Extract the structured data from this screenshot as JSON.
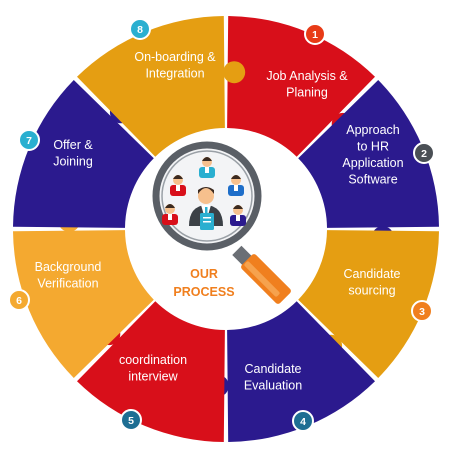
{
  "center": {
    "title_line1": "OUR",
    "title_line2": "PROCESS",
    "title_color": "#F07F1E"
  },
  "colors": {
    "red": "#D80F1A",
    "navy": "#2B1A8E",
    "gold": "#E59E12",
    "amber": "#F4A930"
  },
  "icons": [
    "magnifier-icon",
    "team-people-icon",
    "manager-icon"
  ],
  "steps": [
    {
      "number": "1",
      "line1": "Job Analysis &",
      "line2": "Planing",
      "line3": "",
      "line4": "",
      "segment_color": "#D80F1A",
      "badge_color": "#E83B17"
    },
    {
      "number": "2",
      "line1": "Approach",
      "line2": "to HR",
      "line3": "Application",
      "line4": "Software",
      "segment_color": "#2B1A8E",
      "badge_color": "#4A4F55"
    },
    {
      "number": "3",
      "line1": "Candidate",
      "line2": "sourcing",
      "line3": "",
      "line4": "",
      "segment_color": "#E59E12",
      "badge_color": "#F07F1E"
    },
    {
      "number": "4",
      "line1": "Candidate",
      "line2": "Evaluation",
      "line3": "",
      "line4": "",
      "segment_color": "#2B1A8E",
      "badge_color": "#1E6E93"
    },
    {
      "number": "5",
      "line1": "coordination",
      "line2": "interview",
      "line3": "",
      "line4": "",
      "segment_color": "#D80F1A",
      "badge_color": "#1E6E93"
    },
    {
      "number": "6",
      "line1": "Background",
      "line2": "Verification",
      "line3": "",
      "line4": "",
      "segment_color": "#F4A930",
      "badge_color": "#F4A930"
    },
    {
      "number": "7",
      "line1": "Offer &",
      "line2": "Joining",
      "line3": "",
      "line4": "",
      "segment_color": "#2B1A8E",
      "badge_color": "#2AAFD0"
    },
    {
      "number": "8",
      "line1": "On-boarding &",
      "line2": "Integration",
      "line3": "",
      "line4": "",
      "segment_color": "#E59E12",
      "badge_color": "#2AAFD0"
    }
  ]
}
